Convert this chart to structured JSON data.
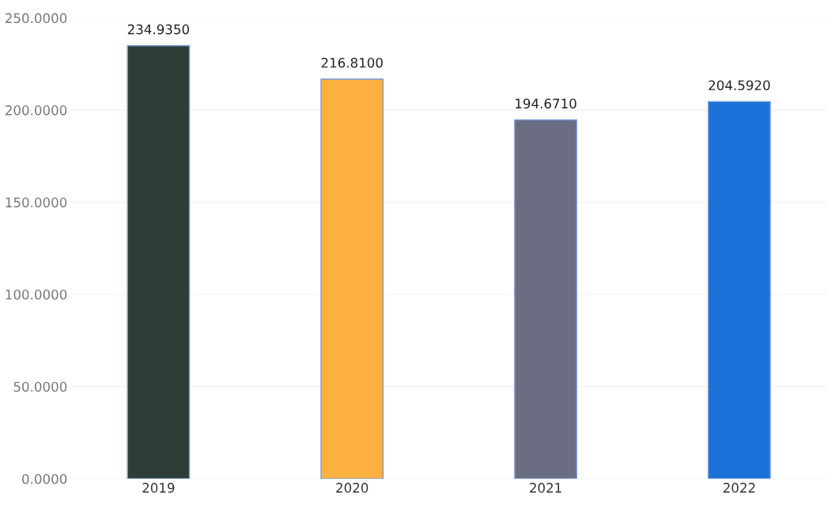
{
  "chart_data": {
    "type": "bar",
    "categories": [
      "2019",
      "2020",
      "2021",
      "2022"
    ],
    "values": [
      234.935,
      216.81,
      194.671,
      204.592
    ],
    "colors": [
      "#2f3d38",
      "#fbb040",
      "#6b6e82",
      "#1a72d8"
    ],
    "value_labels": [
      "234.9350",
      "216.8100",
      "194.6710",
      "204.5920"
    ],
    "ylim": [
      0,
      250
    ],
    "yticks": [
      {
        "value": 0,
        "label": "0.0000"
      },
      {
        "value": 50,
        "label": "50.0000"
      },
      {
        "value": 100,
        "label": "100.0000"
      },
      {
        "value": 150,
        "label": "150.0000"
      },
      {
        "value": 200,
        "label": "200.0000"
      },
      {
        "value": 250,
        "label": "250.0000"
      }
    ],
    "grid": "y"
  }
}
